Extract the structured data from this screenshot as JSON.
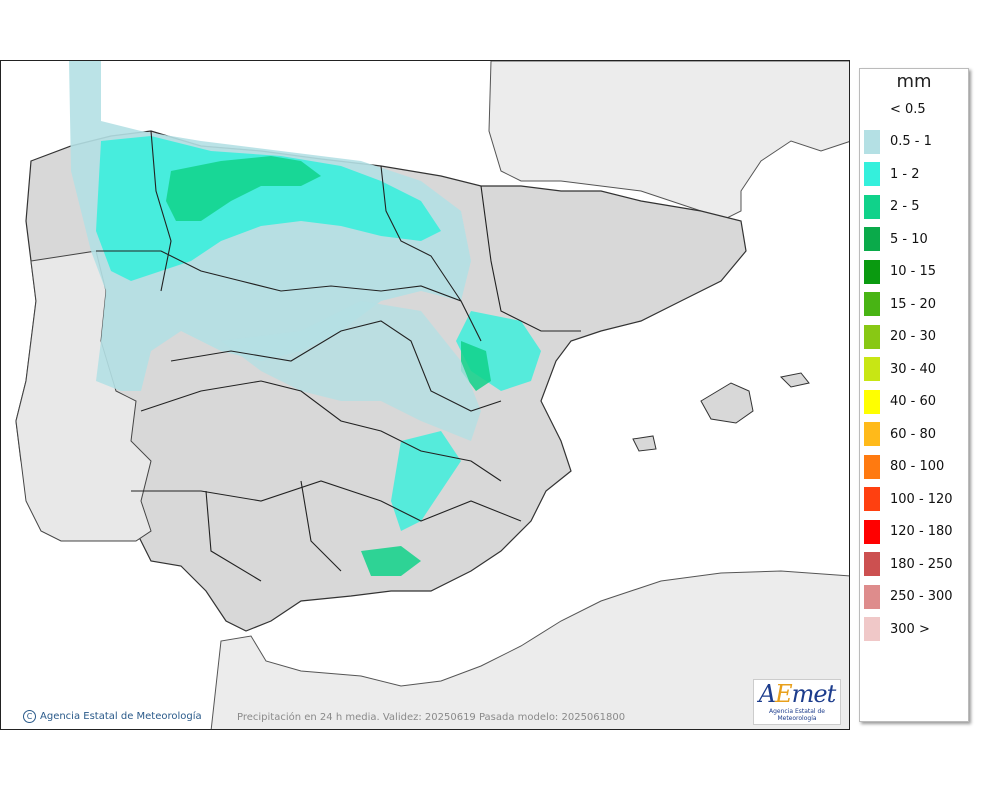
{
  "legend": {
    "title": "mm",
    "items": [
      {
        "label": "< 0.5",
        "color": "#ffffff"
      },
      {
        "label": "0.5 - 1",
        "color": "#b4e0e4"
      },
      {
        "label": "1 - 2",
        "color": "#34f0dc"
      },
      {
        "label": "2 - 5",
        "color": "#10d28a"
      },
      {
        "label": "5 - 10",
        "color": "#0aaa4a"
      },
      {
        "label": "10 - 15",
        "color": "#0a9a10"
      },
      {
        "label": "15 - 20",
        "color": "#48b414"
      },
      {
        "label": "20 - 30",
        "color": "#88c814"
      },
      {
        "label": "30 - 40",
        "color": "#c8e614"
      },
      {
        "label": "40 - 60",
        "color": "#ffff00"
      },
      {
        "label": "60 - 80",
        "color": "#ffba1a"
      },
      {
        "label": "80 - 100",
        "color": "#ff7a10"
      },
      {
        "label": "100 - 120",
        "color": "#ff4010"
      },
      {
        "label": "120 - 180",
        "color": "#ff0000"
      },
      {
        "label": "180 - 250",
        "color": "#cc5050"
      },
      {
        "label": "250 - 300",
        "color": "#de8c8c"
      },
      {
        "label": "300 >",
        "color": "#f0c8c8"
      }
    ]
  },
  "footer": {
    "credit": "Agencia Estatal de Meteorología",
    "caption": "Precipitación en 24 h media. Validez: 20250619 Pasada modelo: 2025061800",
    "logo_text_a": "A",
    "logo_text_e": "E",
    "logo_text_rest": "met",
    "logo_sub": "Agencia Estatal de Meteorología"
  },
  "colors": {
    "sea": "#ffffff",
    "foreign_land": "#ececec",
    "spain_land": "#d8d8d8",
    "border": "#222222"
  }
}
